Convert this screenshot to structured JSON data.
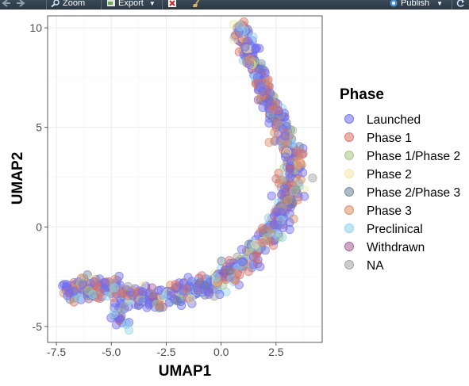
{
  "toolbar": {
    "zoom_label": "Zoom",
    "export_label": "Export",
    "publish_label": "Publish"
  },
  "colors": {
    "toolbar_bg": "#2f3b47",
    "panel_border": "#333333",
    "grid": "#ebebeb"
  },
  "chart_data": {
    "type": "scatter",
    "xlabel": "UMAP1",
    "ylabel": "UMAP2",
    "xlim": [
      -7.9,
      4.6
    ],
    "ylim": [
      -5.8,
      10.6
    ],
    "x_ticks": [
      -7.5,
      -5.0,
      -2.5,
      0.0,
      2.5
    ],
    "x_tick_labels": [
      "-7.5",
      "-5.0",
      "-2.5",
      "0.0",
      "2.5"
    ],
    "y_ticks": [
      -5,
      0,
      5,
      10
    ],
    "y_tick_labels": [
      "-5",
      "0",
      "5",
      "10"
    ],
    "grid": true,
    "legend_position": "right",
    "legend": {
      "title": "Phase",
      "entries": [
        {
          "label": "Launched",
          "color": "#6f6cf0"
        },
        {
          "label": "Phase 1",
          "color": "#d8736a"
        },
        {
          "label": "Phase 1/Phase 2",
          "color": "#a9c58b"
        },
        {
          "label": "Phase 2",
          "color": "#f3e8a6"
        },
        {
          "label": "Phase 2/Phase 3",
          "color": "#6b8398"
        },
        {
          "label": "Phase 3",
          "color": "#d98e64"
        },
        {
          "label": "Preclinical",
          "color": "#8dd2ef"
        },
        {
          "label": "Withdrawn",
          "color": "#a36095"
        },
        {
          "label": "NA",
          "color": "#a0a0a0"
        }
      ]
    },
    "curve": [
      [
        -7.2,
        -3.3
      ],
      [
        -6.5,
        -3.1
      ],
      [
        -6.0,
        -3.0
      ],
      [
        -5.5,
        -3.0
      ],
      [
        -5.0,
        -3.1
      ],
      [
        -4.5,
        -3.3
      ],
      [
        -4.0,
        -3.5
      ],
      [
        -3.5,
        -3.6
      ],
      [
        -3.0,
        -3.6
      ],
      [
        -2.5,
        -3.55
      ],
      [
        -2.0,
        -3.4
      ],
      [
        -1.5,
        -3.3
      ],
      [
        -1.0,
        -3.1
      ],
      [
        -0.5,
        -2.9
      ],
      [
        0.0,
        -2.6
      ],
      [
        0.5,
        -2.2
      ],
      [
        1.0,
        -1.8
      ],
      [
        1.5,
        -1.3
      ],
      [
        2.0,
        -0.6
      ],
      [
        2.5,
        0.3
      ],
      [
        3.0,
        1.3
      ],
      [
        3.3,
        2.3
      ],
      [
        3.3,
        3.3
      ],
      [
        3.1,
        4.3
      ],
      [
        2.6,
        5.3
      ],
      [
        2.2,
        6.3
      ],
      [
        1.8,
        7.3
      ],
      [
        1.4,
        8.3
      ],
      [
        1.1,
        9.3
      ],
      [
        0.8,
        10.2
      ]
    ],
    "offshoots": [
      {
        "x": -4.6,
        "y": -4.3
      },
      {
        "x": -4.4,
        "y": -4.8
      },
      {
        "x": -4.8,
        "y": -4.5
      }
    ],
    "sample_size": 900,
    "category_weights": [
      0.42,
      0.12,
      0.06,
      0.05,
      0.06,
      0.06,
      0.14,
      0.04,
      0.05
    ]
  }
}
